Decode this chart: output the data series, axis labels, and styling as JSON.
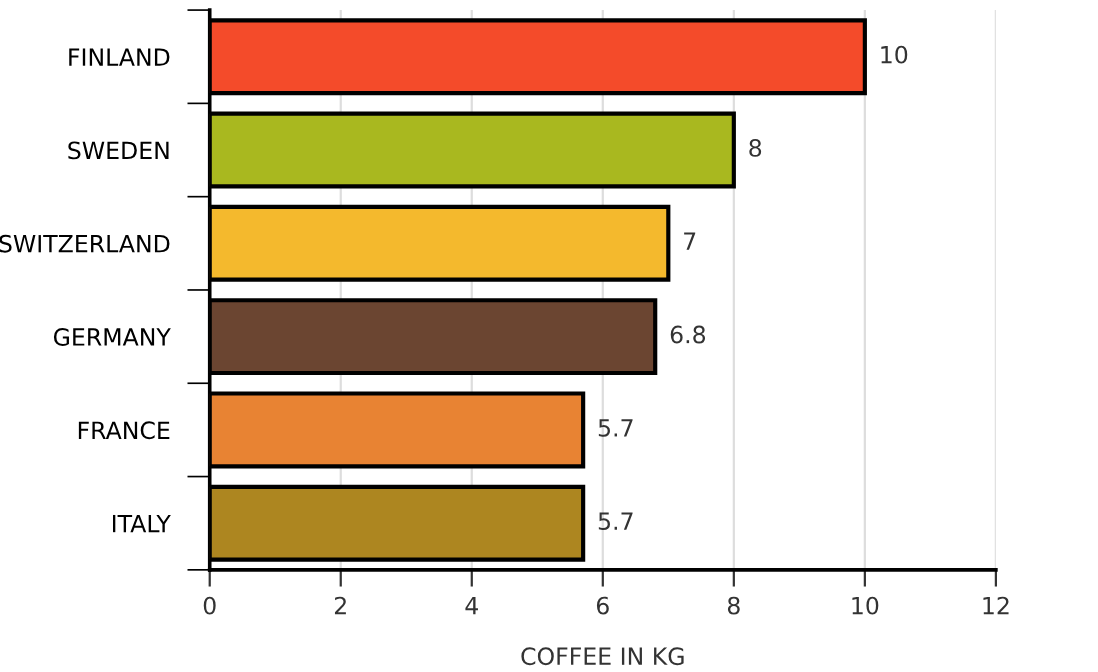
{
  "chart_data": {
    "type": "bar",
    "orientation": "horizontal",
    "xlabel": "COFFEE IN KG",
    "categories": [
      "FINLAND",
      "SWEDEN",
      "SWITZERLAND",
      "GERMANY",
      "FRANCE",
      "ITALY"
    ],
    "values": [
      10,
      8,
      7,
      6.8,
      5.7,
      5.7
    ],
    "colors": [
      "#f44b2a",
      "#a9b81f",
      "#f4b92d",
      "#6b4531",
      "#e88333",
      "#ad8620"
    ],
    "xlim": [
      0,
      12
    ],
    "xticks": [
      0,
      2,
      4,
      6,
      8,
      10,
      12
    ],
    "grid": "x",
    "data_labels": true
  }
}
